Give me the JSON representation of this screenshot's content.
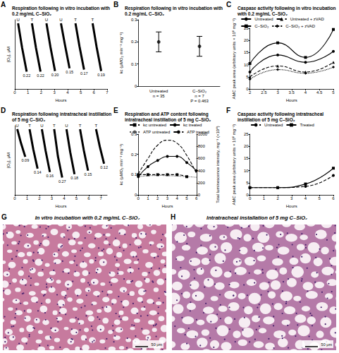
{
  "chart_data": [
    {
      "panel": "A",
      "type": "line",
      "title": "Respiration following in vitro incubation with 0.2 mg/mL C–SiO₂",
      "x_label": "Hours",
      "y_label": "[O₂], μM",
      "xlim": [
        0,
        7
      ],
      "xticks": [
        0,
        1,
        2,
        3,
        4,
        5,
        6,
        7
      ],
      "ylim": [
        0,
        1000
      ],
      "tick_labels": "x",
      "grid": false,
      "color": "#000000",
      "runs": [
        {
          "marker_label": "U",
          "k_label": "0.22",
          "x": [
            0.25,
            0.55,
            0.9
          ],
          "values": [
            950,
            600,
            250
          ]
        },
        {
          "marker_label": "T",
          "k_label": "0.22",
          "x": [
            1.3,
            1.6,
            1.95
          ],
          "values": [
            950,
            600,
            250
          ]
        },
        {
          "marker_label": "U",
          "k_label": "0.20",
          "x": [
            2.4,
            2.7,
            3.05
          ],
          "values": [
            950,
            610,
            260
          ]
        },
        {
          "marker_label": "U",
          "k_label": "0.15",
          "x": [
            3.5,
            3.8,
            4.15
          ],
          "values": [
            950,
            640,
            300
          ]
        },
        {
          "marker_label": "T",
          "k_label": "0.17",
          "x": [
            4.6,
            4.9,
            5.25
          ],
          "values": [
            950,
            620,
            280
          ]
        },
        {
          "marker_label": "T",
          "k_label": "0.19",
          "x": [
            5.9,
            6.2,
            6.55
          ],
          "values": [
            950,
            610,
            260
          ]
        }
      ]
    },
    {
      "panel": "B",
      "type": "scatter",
      "title": "Respiration following in vitro incubation with 0.2 mg/mL C–SiO₂",
      "y_label": "kc (μMO₂ min⁻¹ mg⁻¹)",
      "categories": [
        "Untreated",
        "C–SiO₂"
      ],
      "category_notes": [
        "n = 35",
        "n = 7"
      ],
      "annotation": "P = 0.463",
      "values": [
        0.2,
        0.18
      ],
      "errors": [
        0.045,
        0.045
      ],
      "ylim": [
        0,
        0.3
      ],
      "yticks": [
        0,
        0.1,
        0.2,
        0.3
      ],
      "grid": false,
      "color": "#000000",
      "marker": "circle"
    },
    {
      "panel": "C",
      "type": "line",
      "title": "Caspase activity following in vitro incubation with 0.2 mg/mL C–SiO₂",
      "x_label": "Hours",
      "y_label": "AMC peak area (arbitrary units × 10⁶ mg⁻¹)",
      "xlim": [
        2,
        5
      ],
      "xticks": [
        2,
        2.5,
        3,
        3.5,
        4,
        4.5,
        5
      ],
      "ylim": [
        0,
        25
      ],
      "yticks": [
        0,
        5,
        10,
        15,
        20,
        25
      ],
      "grid": false,
      "legend": "top",
      "x": [
        2,
        3,
        4,
        5
      ],
      "series": [
        {
          "name": "Untreated",
          "color": "#000000",
          "marker": "circle",
          "line_style": "solid",
          "values": [
            7,
            14,
            11,
            15.5
          ]
        },
        {
          "name": "Untreated + zVAD",
          "color": "#000000",
          "marker": "triangle",
          "line_style": "dashed",
          "values": [
            5,
            9.5,
            7,
            11
          ]
        },
        {
          "name": "C–SiO₂",
          "color": "#000000",
          "marker": "square",
          "line_style": "solid",
          "values": [
            10.5,
            19,
            13,
            24.5
          ]
        },
        {
          "name": "C–SiO₂ + zVAD",
          "color": "#000000",
          "marker": "diamond",
          "line_style": "dotted",
          "values": [
            4,
            8,
            6.5,
            9
          ]
        }
      ]
    },
    {
      "panel": "D",
      "type": "line",
      "title": "Respiration following intratracheal instillation of 5 mg C–SiO₂",
      "x_label": "Hours",
      "y_label": "[O₂], μM",
      "xlim": [
        0,
        7.5
      ],
      "xticks": [
        0,
        1,
        2,
        3,
        4,
        5,
        6,
        7
      ],
      "ylim": [
        0,
        1000
      ],
      "tick_labels": "x",
      "grid": false,
      "color": "#000000",
      "runs": [
        {
          "marker_label": "U",
          "k_label": "0.09",
          "x": [
            0.2,
            0.5,
            0.85
          ],
          "values": [
            950,
            750,
            550
          ]
        },
        {
          "marker_label": "T",
          "k_label": "0.14",
          "x": [
            1.2,
            1.5,
            1.85
          ],
          "values": [
            950,
            660,
            380
          ]
        },
        {
          "marker_label": "U",
          "k_label": "0.16",
          "x": [
            2.2,
            2.5,
            2.85
          ],
          "values": [
            950,
            640,
            330
          ]
        },
        {
          "marker_label": "T",
          "k_label": "0.27",
          "x": [
            3.2,
            3.5,
            3.85
          ],
          "values": [
            950,
            560,
            250
          ]
        },
        {
          "marker_label": "U",
          "k_label": "0.18",
          "x": [
            4.2,
            4.5,
            4.85
          ],
          "values": [
            950,
            620,
            300
          ]
        },
        {
          "marker_label": "T",
          "k_label": "0.15",
          "x": [
            5.3,
            5.6,
            5.95
          ],
          "values": [
            950,
            650,
            350
          ]
        },
        {
          "marker_label": "T",
          "k_label": "0.12",
          "x": [
            6.6,
            6.9,
            7.25
          ],
          "values": [
            950,
            700,
            450
          ]
        }
      ]
    },
    {
      "panel": "E",
      "type": "line",
      "title": "Respiration and ATP content following intratracheal instillation of 5 mg C–SiO₂",
      "x_label": "Hours",
      "y_label": "kc (μMO₂ min⁻¹ mg⁻¹)",
      "y2_label": "Total luminescence intensity, mg⁻¹ (×10⁴)",
      "xlim": [
        0,
        6
      ],
      "xticks": [
        0,
        1,
        2,
        3,
        4,
        5,
        6
      ],
      "ylim": [
        0,
        0.3
      ],
      "yticks": [
        0,
        0.1,
        0.2,
        0.3
      ],
      "y2lim": [
        0,
        1000
      ],
      "y2ticks": [
        0,
        200,
        400,
        600,
        800,
        1000
      ],
      "grid": false,
      "legend": "top",
      "series": [
        {
          "name": "kc untreated",
          "color": "#000000",
          "marker": "square",
          "line_style": "dashed",
          "x": [
            0,
            1,
            2,
            3,
            4,
            5
          ],
          "values": [
            0.1,
            0.1,
            0.1,
            0.1,
            0.1,
            0.09
          ]
        },
        {
          "name": "kc treated",
          "color": "#000000",
          "marker": "circle",
          "line_style": "solid",
          "x": [
            0,
            1,
            2,
            3,
            4,
            5,
            6
          ],
          "values": [
            0.09,
            0.14,
            0.17,
            0.19,
            0.19,
            0.16,
            0.12
          ]
        },
        {
          "name": "ATP untreated",
          "color": "#555555",
          "marker": "none",
          "line_style": "dotted",
          "axis": "y2",
          "x": [
            0,
            2,
            4,
            6
          ],
          "values": [
            300,
            320,
            310,
            290
          ]
        },
        {
          "name": "ATP treated",
          "color": "#000000",
          "marker": "none",
          "line_style": "dashed",
          "axis": "y2",
          "x": [
            0,
            1,
            2,
            3,
            4,
            5,
            6
          ],
          "values": [
            350,
            600,
            820,
            900,
            850,
            650,
            350
          ]
        }
      ]
    },
    {
      "panel": "F",
      "type": "line",
      "title": "Caspase activity following intratracheal instillation of 5 mg C–SiO₂",
      "x_label": "Hours",
      "y_label": "AMC peak area (arbitrary units × 10⁶ mg⁻¹)",
      "xlim": [
        0,
        6
      ],
      "xticks": [
        0,
        1,
        2,
        3,
        4,
        5,
        6
      ],
      "ylim": [
        0,
        25
      ],
      "yticks": [
        0,
        5,
        10,
        15,
        20,
        25
      ],
      "grid": false,
      "legend": "top",
      "x": [
        0,
        2,
        4,
        6
      ],
      "series": [
        {
          "name": "Untreated",
          "color": "#000000",
          "marker": "circle",
          "line_style": "dashed",
          "values": [
            3,
            3,
            3.5,
            8
          ]
        },
        {
          "name": "Treated",
          "color": "#000000",
          "marker": "square",
          "line_style": "solid",
          "values": [
            3,
            3,
            4.5,
            11
          ]
        }
      ]
    }
  ],
  "images": [
    {
      "panel": "G",
      "title": "In vitro incubation with 0.2 mg/mL C–SiO₂",
      "scale_bar": "50 μm"
    },
    {
      "panel": "H",
      "title": "Intratracheal installation of 5 mg C–SiO₂",
      "scale_bar": "50 μm"
    }
  ]
}
